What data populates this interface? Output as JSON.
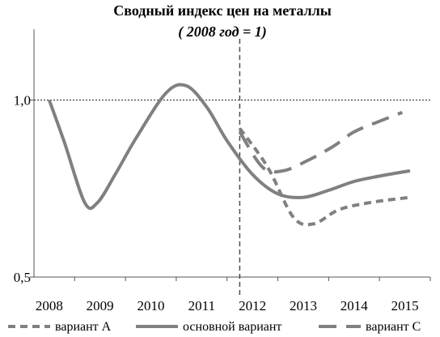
{
  "chart_data": {
    "type": "line",
    "title": "Сводный индекс цен на металлы",
    "subtitle": "( 2008 год = 1)",
    "xlabel": "",
    "ylabel": "",
    "x_ticks": [
      "2008",
      "2009",
      "2010",
      "2011",
      "2012",
      "2013",
      "2014",
      "2015"
    ],
    "y_ticks": [
      "1,0",
      "0,5"
    ],
    "ylim": [
      0.5,
      1.2
    ],
    "xlim": [
      2007.7,
      2015.5
    ],
    "reference_line_y": 1.0,
    "forecast_divider_x": 2011.75,
    "legend_position": "bottom",
    "series": [
      {
        "name": "вариант А",
        "style": "dashed",
        "color": "#808080",
        "points": [
          [
            2011.75,
            0.92
          ],
          [
            2012.3,
            0.81
          ],
          [
            2012.8,
            0.67
          ],
          [
            2013.2,
            0.65
          ],
          [
            2013.7,
            0.69
          ],
          [
            2014.3,
            0.71
          ],
          [
            2015.1,
            0.725
          ]
        ]
      },
      {
        "name": "основной вариант",
        "style": "solid",
        "color": "#808080",
        "points": [
          [
            2008.0,
            1.0
          ],
          [
            2008.3,
            0.88
          ],
          [
            2008.7,
            0.71
          ],
          [
            2008.95,
            0.71
          ],
          [
            2009.3,
            0.79
          ],
          [
            2009.7,
            0.89
          ],
          [
            2010.3,
            1.02
          ],
          [
            2010.7,
            1.04
          ],
          [
            2011.1,
            0.98
          ],
          [
            2011.5,
            0.885
          ],
          [
            2012.0,
            0.79
          ],
          [
            2012.5,
            0.735
          ],
          [
            2013.0,
            0.725
          ],
          [
            2013.5,
            0.745
          ],
          [
            2014.0,
            0.77
          ],
          [
            2014.5,
            0.785
          ],
          [
            2015.1,
            0.8
          ]
        ]
      },
      {
        "name": "вариант С",
        "style": "long-dash",
        "color": "#808080",
        "points": [
          [
            2011.75,
            0.91
          ],
          [
            2012.2,
            0.81
          ],
          [
            2012.6,
            0.8
          ],
          [
            2013.1,
            0.83
          ],
          [
            2013.6,
            0.87
          ],
          [
            2014.0,
            0.91
          ],
          [
            2014.5,
            0.94
          ],
          [
            2014.95,
            0.965
          ]
        ]
      }
    ]
  }
}
